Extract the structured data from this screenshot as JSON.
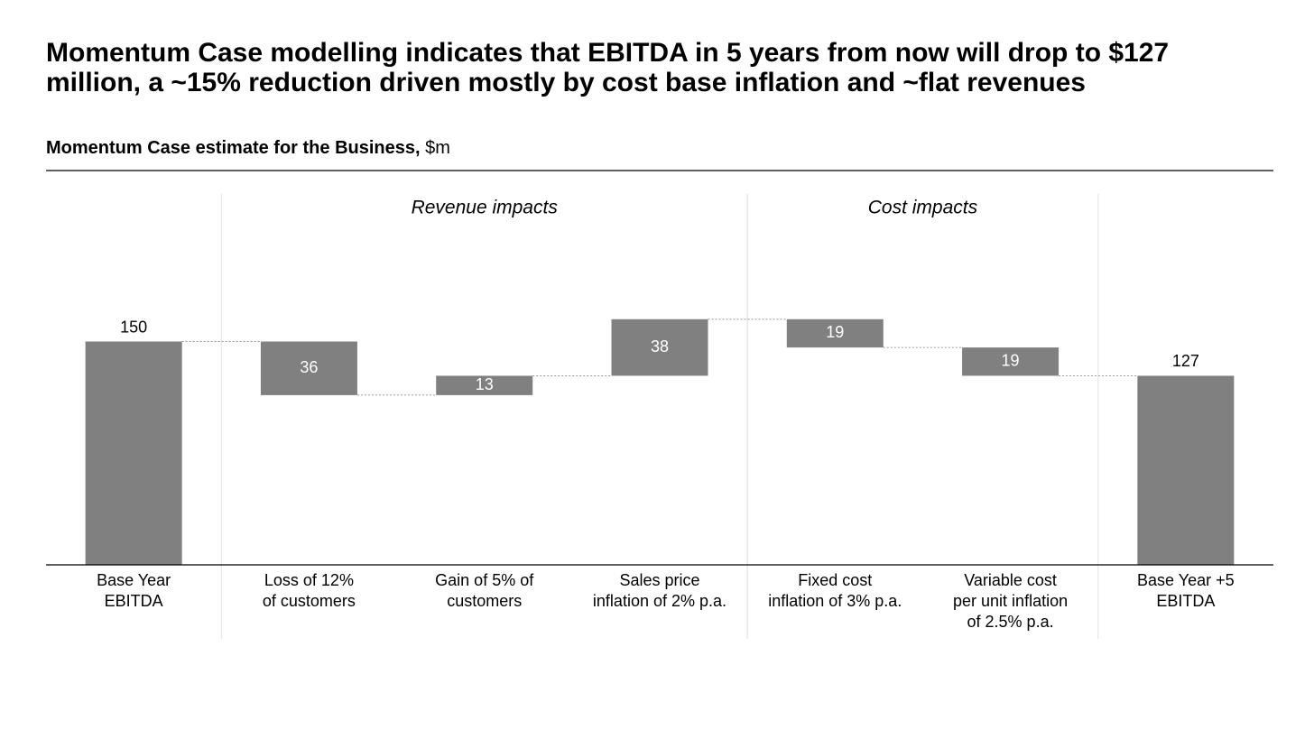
{
  "chart_data": {
    "type": "waterfall",
    "title": "Momentum Case modelling indicates that EBITDA in 5 years from now will drop to $127 million, a ~15% reduction driven mostly by cost base inflation and ~flat revenues",
    "subtitle": "Momentum Case estimate for the Business,",
    "unit": "$m",
    "categories": [
      "Base Year\nEBITDA",
      "Loss of 12%\nof customers",
      "Gain of 5% of\ncustomers",
      "Sales price\ninflation of 2% p.a.",
      "Fixed cost\ninflation of 3% p.a.",
      "Variable cost\nper unit inflation\nof 2.5% p.a.",
      "Base Year +5\nEBITDA"
    ],
    "values": [
      150,
      -36,
      13,
      38,
      -19,
      -19,
      127
    ],
    "value_labels": [
      "150",
      "36",
      "13",
      "38",
      "19",
      "19",
      "127"
    ],
    "measure": [
      "total",
      "relative",
      "relative",
      "relative",
      "relative",
      "relative",
      "total"
    ],
    "groups": [
      {
        "label": "Revenue impacts",
        "start": 1,
        "end": 3
      },
      {
        "label": "Cost impacts",
        "start": 4,
        "end": 5
      }
    ],
    "color": "#808080",
    "ylim": [
      0,
      200
    ]
  }
}
